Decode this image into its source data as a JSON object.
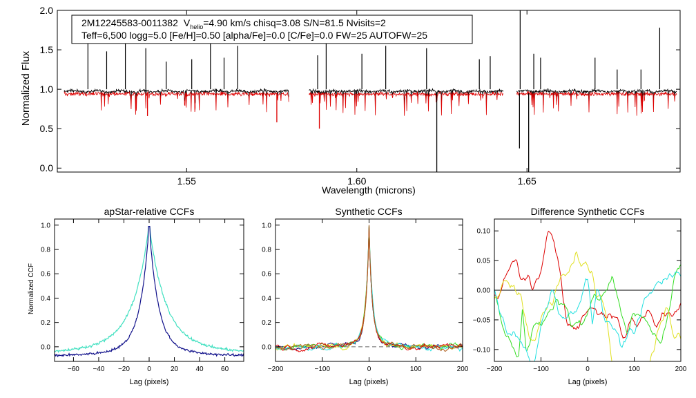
{
  "colors": {
    "black": "#000000",
    "red": "#dd0000",
    "turquoise": "#40e0c0",
    "navy": "#10108a",
    "green": "#33dd22",
    "yellow": "#e0e020",
    "cyan": "#22e0e0",
    "brown": "#b06020",
    "grey": "#666666"
  },
  "chart_data": [
    {
      "type": "line",
      "id": "spectrum",
      "xlabel": "Wavelength (microns)",
      "ylabel": "Normalized Flux",
      "xlim": [
        1.512,
        1.695
      ],
      "ylim": [
        -0.05,
        2.0
      ],
      "xticks": [
        1.55,
        1.6,
        1.65
      ],
      "xtick_labels": [
        "1.55",
        "1.60",
        "1.65"
      ],
      "yticks": [
        0.0,
        0.5,
        1.0,
        1.5,
        2.0
      ],
      "ytick_labels": [
        "0.0",
        "0.5",
        "1.0",
        "1.5",
        "2.0"
      ],
      "annotation": {
        "line1_star": "2M12245583-0011382",
        "line1_v": "V",
        "line1_vsub": "helio",
        "line1_rest": "=4.90 km/s  chisq=3.08  S/N=81.5  Nvisits=2",
        "line2": "Teff=6,500 logg=5.0 [Fe/H]=0.50 [alpha/Fe]=0.0 [C/Fe]=0.0 FW=25 AUTOFW=25"
      },
      "detector_chunks": [
        [
          1.514,
          1.58
        ],
        [
          1.586,
          1.643
        ],
        [
          1.647,
          1.694
        ]
      ],
      "emission_spikes": [
        {
          "x": 1.521,
          "y": 1.62
        },
        {
          "x": 1.5265,
          "y": 1.48
        },
        {
          "x": 1.532,
          "y": 1.78
        },
        {
          "x": 1.538,
          "y": 1.52
        },
        {
          "x": 1.544,
          "y": 1.35
        },
        {
          "x": 1.5515,
          "y": 1.38
        },
        {
          "x": 1.557,
          "y": 1.58
        },
        {
          "x": 1.561,
          "y": 1.4
        },
        {
          "x": 1.565,
          "y": 1.55
        },
        {
          "x": 1.5885,
          "y": 1.43
        },
        {
          "x": 1.591,
          "y": 1.58
        },
        {
          "x": 1.6015,
          "y": 1.45
        },
        {
          "x": 1.6085,
          "y": 1.55
        },
        {
          "x": 1.6205,
          "y": 1.52
        },
        {
          "x": 1.636,
          "y": 1.38
        },
        {
          "x": 1.6392,
          "y": 1.42
        },
        {
          "x": 1.648,
          "y": 2.0
        },
        {
          "x": 1.652,
          "y": 1.45
        },
        {
          "x": 1.654,
          "y": 1.4
        },
        {
          "x": 1.67,
          "y": 1.4
        },
        {
          "x": 1.6765,
          "y": 1.25
        },
        {
          "x": 1.6835,
          "y": 1.25
        },
        {
          "x": 1.689,
          "y": 1.78
        }
      ],
      "absorption_dips": [
        {
          "x": 1.6235,
          "y": -0.05
        },
        {
          "x": 1.6478,
          "y": 0.25
        },
        {
          "x": 1.6505,
          "y": -0.05
        },
        {
          "x": 1.589,
          "y": 0.5
        },
        {
          "x": 1.5765,
          "y": 0.58
        },
        {
          "x": 1.5385,
          "y": 0.66
        }
      ],
      "series": [
        {
          "name": "observed",
          "color": "black"
        },
        {
          "name": "synthetic",
          "color": "red"
        }
      ]
    },
    {
      "type": "line",
      "id": "apstar",
      "title": "apStar-relative CCFs",
      "xlabel": "Lag (pixels)",
      "ylabel": "Normalized CCF",
      "xlim": [
        -75,
        75
      ],
      "ylim": [
        -0.12,
        1.05
      ],
      "xticks": [
        -60,
        -40,
        -20,
        0,
        20,
        40,
        60
      ],
      "xtick_labels": [
        "−60",
        "−40",
        "−20",
        "0",
        "20",
        "40",
        "60"
      ],
      "yticks": [
        0.0,
        0.2,
        0.4,
        0.6,
        0.8,
        1.0
      ],
      "ytick_labels": [
        "0.0",
        "0.2",
        "0.4",
        "0.6",
        "0.8",
        "1.0"
      ],
      "series": [
        {
          "name": "visit-1",
          "color": "turquoise",
          "width": 12,
          "wing": 0.13,
          "floor": -0.06
        },
        {
          "name": "visit-2",
          "color": "navy",
          "width": 7,
          "wing": 0.03,
          "floor": -0.08
        }
      ]
    },
    {
      "type": "line",
      "id": "synthetic",
      "title": "Synthetic CCFs",
      "xlabel": "Lag (pixels)",
      "ylabel": "",
      "xlim": [
        -200,
        200
      ],
      "ylim": [
        -0.12,
        1.05
      ],
      "xticks": [
        -200,
        -100,
        0,
        100,
        200
      ],
      "xtick_labels": [
        "−200",
        "−100",
        "0",
        "100",
        "200"
      ],
      "yticks": [
        0.0,
        0.2,
        0.4,
        0.6,
        0.8,
        1.0
      ],
      "ytick_labels": [
        "0.0",
        "0.2",
        "0.4",
        "0.6",
        "0.8",
        "1.0"
      ],
      "baseline": 0.0,
      "series": [
        {
          "name": "ccf-navy",
          "color": "navy"
        },
        {
          "name": "ccf-green",
          "color": "green"
        },
        {
          "name": "ccf-yellow",
          "color": "yellow"
        },
        {
          "name": "ccf-cyan",
          "color": "cyan"
        },
        {
          "name": "ccf-red",
          "color": "red"
        },
        {
          "name": "ccf-brown",
          "color": "brown"
        }
      ]
    },
    {
      "type": "line",
      "id": "difference",
      "title": "Difference Synthetic CCFs",
      "xlabel": "Lag (pixels)",
      "ylabel": "",
      "xlim": [
        -200,
        200
      ],
      "ylim": [
        -0.12,
        0.12
      ],
      "xticks": [
        -200,
        -100,
        0,
        100,
        200
      ],
      "xtick_labels": [
        "−200",
        "−100",
        "0",
        "100",
        "200"
      ],
      "yticks": [
        -0.1,
        -0.05,
        0.0,
        0.05,
        0.1
      ],
      "ytick_labels": [
        "−0.10",
        "−0.05",
        "0.00",
        "0.05",
        "0.10"
      ],
      "baseline": 0.0,
      "series": [
        {
          "name": "diff-red",
          "color": "red"
        },
        {
          "name": "diff-green",
          "color": "green"
        },
        {
          "name": "diff-yellow",
          "color": "yellow"
        },
        {
          "name": "diff-cyan",
          "color": "cyan"
        }
      ]
    }
  ]
}
